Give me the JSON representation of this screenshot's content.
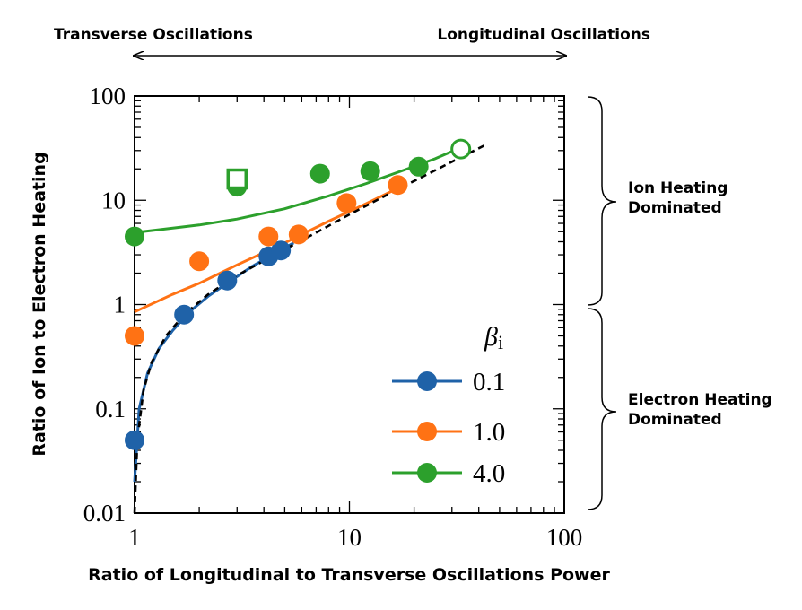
{
  "chart_data": {
    "type": "scatter",
    "xlabel": "Ratio of Longitudinal to Transverse Oscillations Power",
    "ylabel": "Ratio of Ion to Electron Heating",
    "x_scale": "log",
    "y_scale": "log",
    "xlim": [
      1,
      100
    ],
    "ylim": [
      0.01,
      100
    ],
    "x_ticks": [
      "1",
      "10",
      "100"
    ],
    "y_ticks": [
      "0.01",
      "0.1",
      "1",
      "10",
      "100"
    ],
    "legend_title": "β",
    "legend_title_sub": "i",
    "legend_position": "lower-right",
    "top_annotation": {
      "left": "Transverse Oscillations",
      "right": "Longitudinal Oscillations"
    },
    "side_annotations": [
      {
        "lines": [
          "Ion Heating",
          "Dominated"
        ]
      },
      {
        "lines": [
          "Electron Heating",
          "Dominated"
        ]
      }
    ],
    "series": [
      {
        "name": "0.1",
        "color": "#1f62a8",
        "points": [
          [
            1.0,
            0.05
          ],
          [
            1.7,
            0.8
          ],
          [
            2.7,
            1.7
          ],
          [
            4.2,
            2.9
          ],
          [
            4.8,
            3.3
          ]
        ],
        "fit": [
          [
            1.0,
            0.02
          ],
          [
            1.05,
            0.1
          ],
          [
            1.15,
            0.22
          ],
          [
            1.3,
            0.38
          ],
          [
            1.5,
            0.56
          ],
          [
            1.8,
            0.85
          ],
          [
            2.2,
            1.2
          ],
          [
            2.7,
            1.6
          ],
          [
            3.5,
            2.3
          ],
          [
            4.5,
            3.1
          ],
          [
            5.5,
            3.9
          ]
        ]
      },
      {
        "name": "1.0",
        "color": "#ff7214",
        "points": [
          [
            1.0,
            0.5
          ],
          [
            2.0,
            2.6
          ],
          [
            4.2,
            4.5
          ],
          [
            5.8,
            4.7
          ],
          [
            9.7,
            9.4
          ],
          [
            16.8,
            14.0
          ]
        ],
        "fit": [
          [
            1.0,
            0.85
          ],
          [
            1.5,
            1.25
          ],
          [
            2.0,
            1.6
          ],
          [
            3.0,
            2.4
          ],
          [
            5.0,
            3.9
          ],
          [
            8.0,
            6.3
          ],
          [
            12.0,
            9.3
          ],
          [
            18.0,
            14.0
          ]
        ]
      },
      {
        "name": "4.0",
        "color": "#2ca02c",
        "points": [
          [
            1.0,
            4.5
          ],
          [
            3.0,
            13.5
          ],
          [
            7.3,
            18.0
          ],
          [
            12.5,
            19.0
          ],
          [
            21.0,
            21.0
          ]
        ],
        "fit": [
          [
            1.0,
            4.9
          ],
          [
            2.0,
            5.8
          ],
          [
            3.0,
            6.6
          ],
          [
            5.0,
            8.3
          ],
          [
            8.0,
            11.0
          ],
          [
            12.0,
            14.5
          ],
          [
            18.0,
            19.5
          ],
          [
            25.0,
            25.0
          ],
          [
            33.0,
            32.0
          ]
        ],
        "open_circle": [
          33.0,
          31.0
        ],
        "open_square": [
          3.0,
          16.0
        ]
      }
    ],
    "reference_line": {
      "style": "dashed",
      "color": "#000000",
      "points": [
        [
          1.0,
          0.001
        ],
        [
          1.03,
          0.05
        ],
        [
          1.1,
          0.15
        ],
        [
          1.2,
          0.28
        ],
        [
          1.4,
          0.5
        ],
        [
          1.7,
          0.8
        ],
        [
          2.2,
          1.25
        ],
        [
          3.0,
          1.9
        ],
        [
          4.5,
          3.0
        ],
        [
          7.0,
          4.9
        ],
        [
          10.0,
          7.3
        ],
        [
          15.0,
          11.3
        ],
        [
          20.0,
          15.3
        ],
        [
          30.0,
          23.4
        ],
        [
          43.0,
          34.0
        ]
      ]
    }
  }
}
